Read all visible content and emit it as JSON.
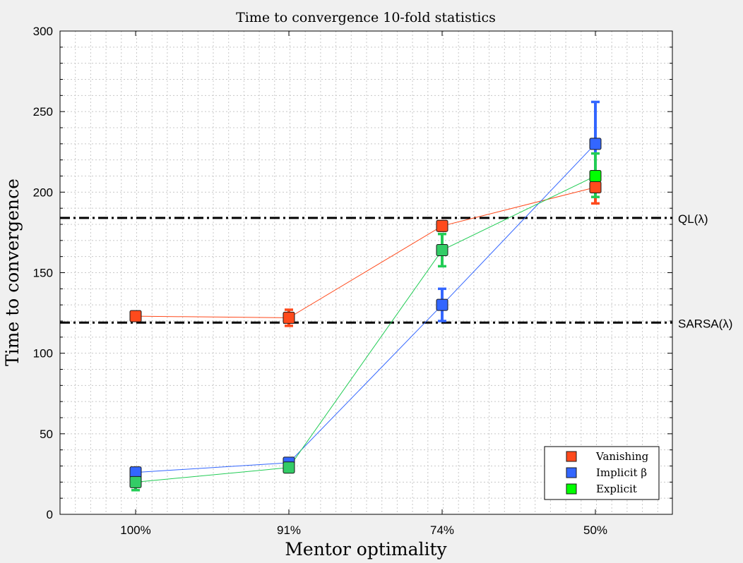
{
  "chart_data": {
    "type": "line",
    "title": "Time to convergence 10-fold statistics",
    "xlabel": "Mentor optimality",
    "ylabel": "Time to convergence",
    "categories": [
      "100%",
      "91%",
      "74%",
      "50%"
    ],
    "ylim": [
      0,
      300
    ],
    "yticks": [
      "0",
      "50",
      "100",
      "150",
      "200",
      "250",
      "300"
    ],
    "grid": true,
    "legend_position": "bottom-right",
    "series": [
      {
        "name": "Vanishing",
        "color": "#ff4a1c",
        "line_color": "#ff4a1c",
        "values": [
          123,
          122,
          179,
          203
        ],
        "err_low": [
          0,
          5,
          3,
          10
        ],
        "err_high": [
          0,
          5,
          3,
          3
        ]
      },
      {
        "name": "Implicit β",
        "color": "#3366ff",
        "line_color": "#3366ff",
        "values": [
          26,
          32,
          130,
          230
        ],
        "err_low": [
          0,
          0,
          10,
          22
        ],
        "err_high": [
          0,
          0,
          10,
          26
        ]
      },
      {
        "name": "Explicit",
        "color": "#33cc66",
        "legend_color": "#00ff00",
        "line_color": "#22cc55",
        "values": [
          20,
          29,
          164,
          210
        ],
        "err_low": [
          5,
          0,
          10,
          13
        ],
        "err_high": [
          5,
          0,
          10,
          14
        ]
      }
    ],
    "reference_lines": [
      {
        "label": "QL(λ)",
        "value": 184
      },
      {
        "label": "SARSA(λ)",
        "value": 119
      }
    ]
  }
}
